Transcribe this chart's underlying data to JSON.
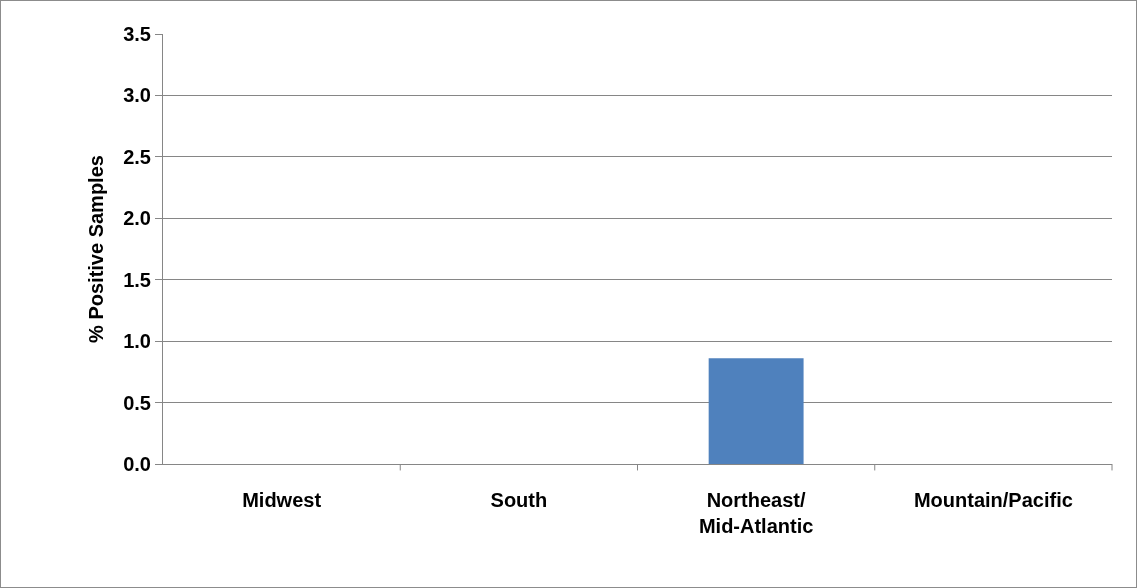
{
  "chart_data": {
    "type": "bar",
    "ylabel": "% Positive Samples",
    "categories": [
      "Midwest",
      "South",
      "Northeast/\nMid-Atlantic",
      "Mountain/Pacific"
    ],
    "values": [
      0,
      0,
      0.86,
      0
    ],
    "color": "#4f81bd",
    "ylim": [
      0,
      3.5
    ],
    "yticks": [
      {
        "value": 0,
        "label": "0.0"
      },
      {
        "value": 0.5,
        "label": "0.5"
      },
      {
        "value": 1,
        "label": "1.0"
      },
      {
        "value": 1.5,
        "label": "1.5"
      },
      {
        "value": 2,
        "label": "2.0"
      },
      {
        "value": 2.5,
        "label": "2.5"
      },
      {
        "value": 3,
        "label": "3.0"
      },
      {
        "value": 3.5,
        "label": "3.5"
      }
    ],
    "grid": "y"
  }
}
